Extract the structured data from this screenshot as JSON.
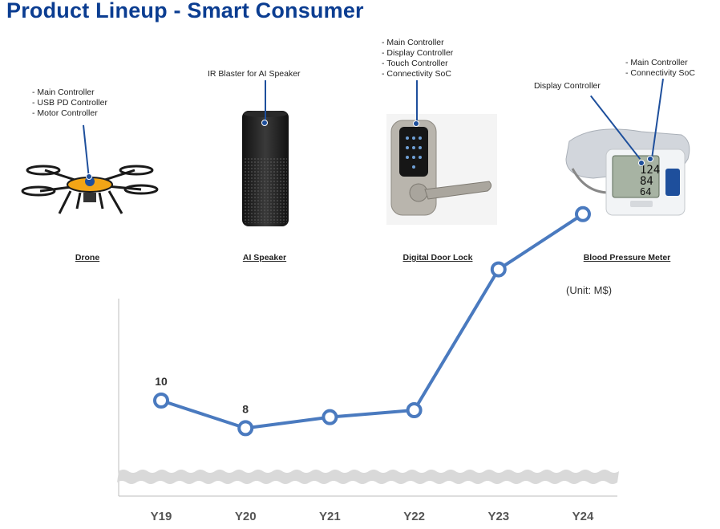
{
  "title": "Product Lineup - Smart Consumer",
  "products": [
    {
      "name": "Drone",
      "features": [
        "- Main Controller",
        "- USB PD Controller",
        "- Motor Controller"
      ]
    },
    {
      "name": "AI Speaker",
      "features": [
        "IR Blaster for AI Speaker"
      ]
    },
    {
      "name": "Digital Door Lock",
      "features": [
        "- Main Controller",
        "- Display Controller",
        "- Touch Controller",
        "- Connectivity SoC"
      ]
    },
    {
      "name": "Blood Pressure Meter",
      "features_left": [
        "Display Controller"
      ],
      "features_right": [
        "- Main Controller",
        "- Connectivity SoC"
      ]
    }
  ],
  "unit_label": "(Unit: M$)",
  "colors": {
    "title": "#0b3d91",
    "line": "#4a7abf",
    "accent": "#1e4f9c"
  },
  "chart_data": {
    "type": "line",
    "categories": [
      "Y19",
      "Y20",
      "Y21",
      "Y22",
      "Y23",
      "Y24"
    ],
    "series": [
      {
        "values": [
          10,
          8,
          8.8,
          9.3,
          19.5,
          23.5
        ],
        "data_labels": [
          "10",
          "8",
          "",
          "",
          "",
          ""
        ]
      }
    ],
    "ylim": [
      4,
      26
    ],
    "axis_break": true,
    "grid": false
  }
}
